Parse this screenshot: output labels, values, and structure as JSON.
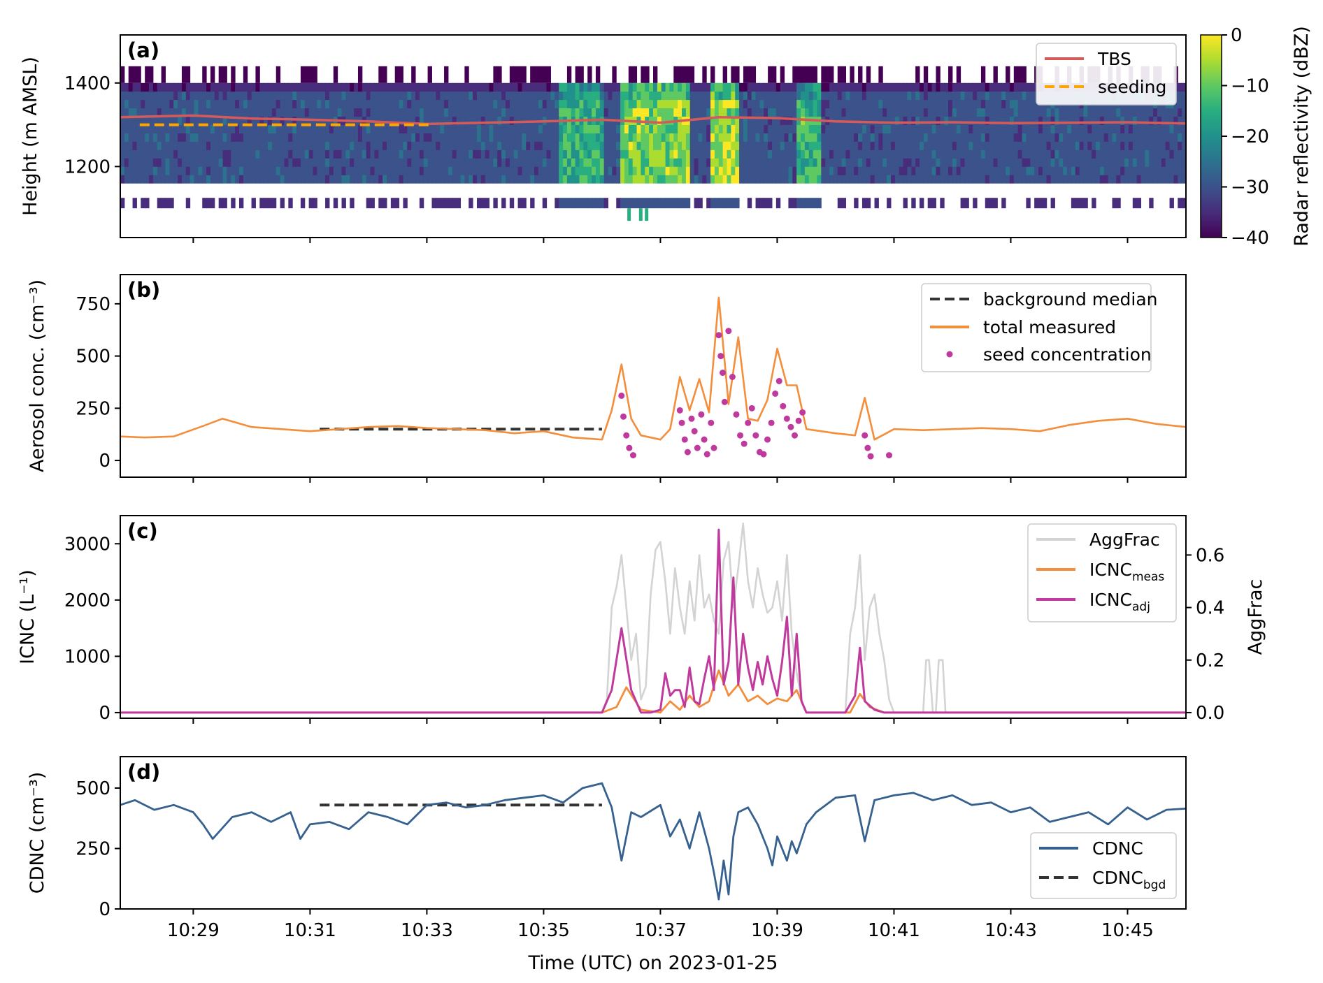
{
  "figure": {
    "xlabel": "Time (UTC) on 2023-01-25",
    "x_ticks": [
      "10:29",
      "10:31",
      "10:33",
      "10:35",
      "10:37",
      "10:39",
      "10:41",
      "10:43",
      "10:45"
    ],
    "xlim": [
      "10:27:45",
      "10:46:00"
    ]
  },
  "chart_data": [
    {
      "panel": "(a)",
      "type": "heatmap",
      "ylabel": "Height (m AMSL)",
      "yticks": [
        1200,
        1400
      ],
      "ylim": [
        1030,
        1515
      ],
      "colorbar": {
        "label": "Radar reflectivity (dBZ)",
        "ticks": [
          "0",
          "−10",
          "−20",
          "−30",
          "−40"
        ],
        "range": [
          -40,
          0
        ],
        "colormap": "viridis"
      },
      "radar_summary": {
        "layer_top_m": 1400,
        "layer_bottom_m": 1160,
        "background_dbz": -30,
        "convective_cells": [
          {
            "start": "10:35:15",
            "end": "10:36:00",
            "peak_dbz": -15
          },
          {
            "start": "10:36:20",
            "end": "10:37:30",
            "peak_dbz": -8
          },
          {
            "start": "10:37:50",
            "end": "10:38:20",
            "peak_dbz": -6
          },
          {
            "start": "10:39:20",
            "end": "10:39:45",
            "peak_dbz": -14
          }
        ]
      },
      "series": [
        {
          "name": "TBS",
          "color": "#d55b5b",
          "style": "solid",
          "x": [
            "10:27:45",
            "10:29:00",
            "10:30:00",
            "10:31:00",
            "10:32:00",
            "10:33:00",
            "10:34:00",
            "10:35:00",
            "10:36:00",
            "10:37:00",
            "10:38:00",
            "10:39:00",
            "10:40:00",
            "10:41:00",
            "10:42:00",
            "10:43:00",
            "10:44:00",
            "10:45:00",
            "10:46:00"
          ],
          "y": [
            1318,
            1322,
            1315,
            1312,
            1308,
            1302,
            1305,
            1308,
            1312,
            1305,
            1318,
            1316,
            1308,
            1305,
            1306,
            1304,
            1305,
            1306,
            1303
          ]
        },
        {
          "name": "seeding",
          "color": "#ffa500",
          "style": "dashed",
          "x": [
            "10:28:05",
            "10:33:05"
          ],
          "y": [
            1300,
            1300
          ]
        }
      ],
      "legend_position": "top-right"
    },
    {
      "panel": "(b)",
      "type": "line",
      "ylabel": "Aerosol conc. (cm⁻³)",
      "yticks": [
        0,
        250,
        500,
        750
      ],
      "ylim": [
        -80,
        890
      ],
      "series": [
        {
          "name": "background median",
          "color": "#333333",
          "style": "dashed",
          "x": [
            "10:31:10",
            "10:36:00"
          ],
          "y": [
            150,
            150
          ]
        },
        {
          "name": "total measured",
          "color": "#f28e3c",
          "style": "solid",
          "x": [
            "10:27:45",
            "10:28:10",
            "10:28:40",
            "10:29:10",
            "10:29:30",
            "10:30:00",
            "10:30:30",
            "10:31:00",
            "10:31:30",
            "10:32:00",
            "10:32:30",
            "10:33:00",
            "10:33:30",
            "10:34:00",
            "10:34:30",
            "10:35:00",
            "10:35:30",
            "10:36:00",
            "10:36:10",
            "10:36:20",
            "10:36:30",
            "10:36:40",
            "10:37:00",
            "10:37:10",
            "10:37:20",
            "10:37:30",
            "10:37:40",
            "10:37:50",
            "10:38:00",
            "10:38:10",
            "10:38:20",
            "10:38:30",
            "10:38:40",
            "10:38:50",
            "10:39:00",
            "10:39:10",
            "10:39:20",
            "10:39:30",
            "10:40:00",
            "10:40:20",
            "10:40:30",
            "10:40:40",
            "10:41:00",
            "10:41:30",
            "10:42:00",
            "10:42:30",
            "10:43:00",
            "10:43:30",
            "10:44:00",
            "10:44:30",
            "10:45:00",
            "10:45:30",
            "10:46:00"
          ],
          "y": [
            115,
            110,
            115,
            165,
            200,
            160,
            150,
            140,
            150,
            160,
            165,
            155,
            150,
            145,
            130,
            140,
            110,
            100,
            240,
            460,
            200,
            120,
            100,
            150,
            400,
            240,
            390,
            230,
            780,
            270,
            590,
            200,
            190,
            290,
            535,
            360,
            360,
            150,
            130,
            120,
            300,
            100,
            150,
            145,
            150,
            155,
            150,
            140,
            170,
            190,
            200,
            175,
            160
          ]
        },
        {
          "name": "seed concentration",
          "color": "#c0399c",
          "style": "points",
          "x": [
            "10:36:20",
            "10:36:22",
            "10:36:25",
            "10:36:28",
            "10:36:32",
            "10:37:20",
            "10:37:22",
            "10:37:25",
            "10:37:28",
            "10:37:32",
            "10:37:35",
            "10:37:38",
            "10:37:42",
            "10:37:45",
            "10:37:48",
            "10:37:52",
            "10:37:55",
            "10:38:00",
            "10:38:02",
            "10:38:04",
            "10:38:06",
            "10:38:10",
            "10:38:14",
            "10:38:18",
            "10:38:22",
            "10:38:26",
            "10:38:30",
            "10:38:34",
            "10:38:38",
            "10:38:42",
            "10:38:46",
            "10:38:50",
            "10:38:54",
            "10:38:58",
            "10:39:02",
            "10:39:06",
            "10:39:10",
            "10:39:14",
            "10:39:18",
            "10:39:22",
            "10:39:26",
            "10:40:30",
            "10:40:33",
            "10:40:36",
            "10:40:55"
          ],
          "y": [
            310,
            210,
            120,
            60,
            25,
            240,
            180,
            100,
            40,
            200,
            140,
            60,
            220,
            100,
            30,
            180,
            60,
            600,
            500,
            420,
            280,
            620,
            400,
            220,
            120,
            80,
            180,
            250,
            120,
            40,
            30,
            100,
            180,
            320,
            380,
            260,
            200,
            160,
            120,
            190,
            230,
            120,
            60,
            20,
            25
          ]
        }
      ],
      "legend_position": "top-right"
    },
    {
      "panel": "(c)",
      "type": "line",
      "ylabel": "ICNC (L⁻¹)",
      "y2label": "AggFrac",
      "yticks": [
        0,
        1000,
        2000,
        3000
      ],
      "ylim": [
        -100,
        3500
      ],
      "y2ticks": [
        0.0,
        0.2,
        0.4,
        0.6
      ],
      "y2lim": [
        -0.0214,
        0.75
      ],
      "series": [
        {
          "name": "AggFrac",
          "color": "#d3d3d3",
          "style": "solid",
          "axis": "y2",
          "x": [
            "10:27:45",
            "10:36:00",
            "10:36:05",
            "10:36:10",
            "10:36:15",
            "10:36:20",
            "10:36:25",
            "10:36:30",
            "10:36:35",
            "10:36:40",
            "10:36:45",
            "10:36:50",
            "10:36:55",
            "10:37:00",
            "10:37:05",
            "10:37:10",
            "10:37:15",
            "10:37:20",
            "10:37:25",
            "10:37:30",
            "10:37:35",
            "10:37:40",
            "10:37:45",
            "10:37:50",
            "10:37:55",
            "10:38:00",
            "10:38:05",
            "10:38:10",
            "10:38:15",
            "10:38:20",
            "10:38:25",
            "10:38:30",
            "10:38:35",
            "10:38:40",
            "10:38:45",
            "10:38:50",
            "10:38:55",
            "10:39:00",
            "10:39:05",
            "10:39:10",
            "10:39:15",
            "10:39:20",
            "10:39:25",
            "10:39:30",
            "10:39:35",
            "10:39:40",
            "10:40:10",
            "10:40:15",
            "10:40:20",
            "10:40:25",
            "10:40:30",
            "10:40:35",
            "10:40:40",
            "10:40:45",
            "10:40:50",
            "10:40:55",
            "10:41:00",
            "10:41:30",
            "10:41:33",
            "10:41:36",
            "10:41:40",
            "10:41:43",
            "10:41:46",
            "10:41:50",
            "10:41:53",
            "10:46:00"
          ],
          "y": [
            0,
            0,
            0.05,
            0.4,
            0.48,
            0.6,
            0.4,
            0.2,
            0.3,
            0.05,
            0.1,
            0.45,
            0.62,
            0.65,
            0.5,
            0.3,
            0.55,
            0.4,
            0.3,
            0.5,
            0.35,
            0.6,
            0.4,
            0.45,
            0.35,
            0.3,
            0.58,
            0.65,
            0.4,
            0.55,
            0.72,
            0.5,
            0.4,
            0.55,
            0.45,
            0.38,
            0.4,
            0.5,
            0.35,
            0.6,
            0.3,
            0.15,
            0.05,
            0.0,
            0.0,
            0.0,
            0.0,
            0.3,
            0.4,
            0.6,
            0.2,
            0.4,
            0.45,
            0.3,
            0.2,
            0.05,
            0.0,
            0.0,
            0.2,
            0.2,
            0.0,
            0.0,
            0.2,
            0.2,
            0.0,
            0.0
          ]
        },
        {
          "name": "ICNC",
          "name_sub": "meas",
          "color": "#f28e3c",
          "style": "solid",
          "x": [
            "10:27:45",
            "10:36:00",
            "10:36:15",
            "10:36:25",
            "10:36:40",
            "10:37:00",
            "10:37:10",
            "10:37:20",
            "10:37:30",
            "10:37:40",
            "10:37:50",
            "10:38:00",
            "10:38:10",
            "10:38:20",
            "10:38:30",
            "10:38:40",
            "10:38:50",
            "10:39:00",
            "10:39:10",
            "10:39:20",
            "10:39:30",
            "10:40:00",
            "10:40:15",
            "10:40:25",
            "10:40:35",
            "10:40:50",
            "10:46:00"
          ],
          "y": [
            0,
            0,
            100,
            450,
            50,
            0,
            200,
            50,
            300,
            100,
            200,
            750,
            300,
            500,
            200,
            300,
            150,
            250,
            200,
            400,
            0,
            0,
            0,
            330,
            100,
            0,
            0
          ]
        },
        {
          "name": "ICNC",
          "name_sub": "adj",
          "color": "#c0399c",
          "style": "solid",
          "x": [
            "10:27:45",
            "10:36:00",
            "10:36:10",
            "10:36:20",
            "10:36:30",
            "10:36:40",
            "10:36:50",
            "10:37:00",
            "10:37:05",
            "10:37:10",
            "10:37:15",
            "10:37:20",
            "10:37:25",
            "10:37:30",
            "10:37:35",
            "10:37:40",
            "10:37:45",
            "10:37:50",
            "10:37:55",
            "10:38:00",
            "10:38:05",
            "10:38:10",
            "10:38:15",
            "10:38:20",
            "10:38:25",
            "10:38:30",
            "10:38:35",
            "10:38:40",
            "10:38:45",
            "10:38:50",
            "10:38:55",
            "10:39:00",
            "10:39:05",
            "10:39:10",
            "10:39:15",
            "10:39:20",
            "10:39:25",
            "10:39:30",
            "10:40:00",
            "10:40:10",
            "10:40:20",
            "10:40:25",
            "10:40:30",
            "10:40:40",
            "10:40:50",
            "10:46:00"
          ],
          "y": [
            0,
            0,
            400,
            1500,
            400,
            0,
            0,
            50,
            700,
            300,
            400,
            400,
            100,
            800,
            200,
            150,
            600,
            1000,
            400,
            3250,
            500,
            900,
            2400,
            500,
            1400,
            800,
            400,
            900,
            500,
            1000,
            600,
            300,
            900,
            1700,
            300,
            1400,
            200,
            0,
            0,
            0,
            300,
            1150,
            200,
            50,
            0,
            0
          ]
        }
      ],
      "legend_position": "top-right"
    },
    {
      "panel": "(d)",
      "type": "line",
      "ylabel": "CDNC (cm⁻³)",
      "yticks": [
        0,
        250,
        500
      ],
      "ylim": [
        0,
        630
      ],
      "series": [
        {
          "name": "CDNC",
          "color": "#36618f",
          "style": "solid",
          "x": [
            "10:27:45",
            "10:28:00",
            "10:28:20",
            "10:28:40",
            "10:29:00",
            "10:29:10",
            "10:29:20",
            "10:29:40",
            "10:30:00",
            "10:30:20",
            "10:30:40",
            "10:30:50",
            "10:31:00",
            "10:31:20",
            "10:31:40",
            "10:32:00",
            "10:32:20",
            "10:32:40",
            "10:33:00",
            "10:33:20",
            "10:33:40",
            "10:34:00",
            "10:34:20",
            "10:34:40",
            "10:35:00",
            "10:35:20",
            "10:35:40",
            "10:36:00",
            "10:36:10",
            "10:36:20",
            "10:36:30",
            "10:36:40",
            "10:37:00",
            "10:37:10",
            "10:37:20",
            "10:37:30",
            "10:37:40",
            "10:37:50",
            "10:37:55",
            "10:38:00",
            "10:38:05",
            "10:38:10",
            "10:38:15",
            "10:38:20",
            "10:38:30",
            "10:38:40",
            "10:38:50",
            "10:38:55",
            "10:39:00",
            "10:39:10",
            "10:39:15",
            "10:39:20",
            "10:39:30",
            "10:39:40",
            "10:40:00",
            "10:40:20",
            "10:40:30",
            "10:40:40",
            "10:41:00",
            "10:41:20",
            "10:41:40",
            "10:42:00",
            "10:42:20",
            "10:42:40",
            "10:43:00",
            "10:43:20",
            "10:43:40",
            "10:44:00",
            "10:44:20",
            "10:44:40",
            "10:45:00",
            "10:45:20",
            "10:45:40",
            "10:46:00"
          ],
          "y": [
            430,
            450,
            410,
            430,
            400,
            350,
            290,
            380,
            400,
            360,
            400,
            290,
            350,
            360,
            330,
            400,
            380,
            350,
            430,
            440,
            420,
            430,
            450,
            460,
            470,
            440,
            500,
            520,
            420,
            200,
            400,
            380,
            430,
            300,
            370,
            250,
            400,
            250,
            150,
            40,
            200,
            60,
            300,
            400,
            420,
            350,
            250,
            180,
            300,
            200,
            280,
            230,
            350,
            400,
            460,
            470,
            280,
            450,
            470,
            480,
            450,
            470,
            430,
            440,
            400,
            420,
            360,
            380,
            400,
            350,
            420,
            370,
            410,
            415
          ]
        },
        {
          "name": "CDNC",
          "name_sub": "bgd",
          "color": "#333333",
          "style": "dashed",
          "x": [
            "10:31:10",
            "10:36:00"
          ],
          "y": [
            430,
            430
          ]
        }
      ],
      "legend_position": "bottom-right"
    }
  ]
}
